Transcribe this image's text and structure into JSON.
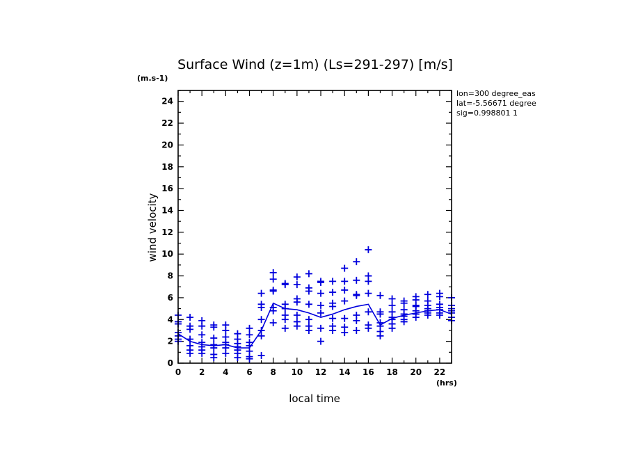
{
  "chart_data": {
    "type": "scatter",
    "title": "Surface Wind (z=1m) (Ls=291-297) [m/s]",
    "xlabel": "local time",
    "ylabel": "wind velocity",
    "x_unit": "(hrs)",
    "y_unit": "(m.s-1)",
    "xlim": [
      0,
      23
    ],
    "ylim": [
      0,
      25
    ],
    "x_ticks": [
      0,
      2,
      4,
      6,
      8,
      10,
      12,
      14,
      16,
      18,
      20,
      22
    ],
    "y_ticks": [
      0,
      2,
      4,
      6,
      8,
      10,
      12,
      14,
      16,
      18,
      20,
      22,
      24
    ],
    "info_lines": [
      "lon=300 degree_eas",
      "lat=-5.56671 degree",
      "sig=0.998801 1"
    ],
    "grid": false,
    "color": "#0000dd",
    "mean_line": {
      "x": [
        0,
        1,
        2,
        3,
        4,
        5,
        6,
        7,
        8,
        9,
        10,
        11,
        12,
        13,
        14,
        15,
        16,
        17,
        18,
        19,
        20,
        21,
        22,
        23
      ],
      "y": [
        2.7,
        2.0,
        1.7,
        1.6,
        1.7,
        1.4,
        1.4,
        3.0,
        5.5,
        5.0,
        4.9,
        4.6,
        4.2,
        4.5,
        4.9,
        5.2,
        5.4,
        3.5,
        4.1,
        4.4,
        4.6,
        4.8,
        4.9,
        4.5
      ]
    },
    "points": {
      "x": [
        0,
        0,
        0,
        0,
        0,
        0,
        0,
        1,
        1,
        1,
        1,
        1,
        1,
        1,
        2,
        2,
        2,
        2,
        2,
        2,
        2,
        3,
        3,
        3,
        3,
        3,
        3,
        3,
        4,
        4,
        4,
        4,
        4,
        4,
        4,
        5,
        5,
        5,
        5,
        5,
        5,
        5,
        6,
        6,
        6,
        6,
        6,
        6,
        6,
        7,
        7,
        7,
        7,
        7,
        7,
        7,
        8,
        8,
        8,
        8,
        8,
        8,
        8,
        9,
        9,
        9,
        9,
        9,
        9,
        9,
        10,
        10,
        10,
        10,
        10,
        10,
        10,
        11,
        11,
        11,
        11,
        11,
        11,
        11,
        12,
        12,
        12,
        12,
        12,
        12,
        12,
        13,
        13,
        13,
        13,
        13,
        13,
        13,
        14,
        14,
        14,
        14,
        14,
        14,
        14,
        15,
        15,
        15,
        15,
        15,
        15,
        15,
        16,
        16,
        16,
        16,
        16,
        16,
        16,
        17,
        17,
        17,
        17,
        17,
        17,
        17,
        18,
        18,
        18,
        18,
        18,
        18,
        18,
        19,
        19,
        19,
        19,
        19,
        19,
        19,
        20,
        20,
        20,
        20,
        20,
        20,
        20,
        21,
        21,
        21,
        21,
        21,
        21,
        21,
        22,
        22,
        22,
        22,
        22,
        22,
        22,
        23,
        23,
        23,
        23,
        23,
        23,
        23
      ],
      "y": [
        4.4,
        3.8,
        3.6,
        2.8,
        2.5,
        2.2,
        2.0,
        4.2,
        3.4,
        3.1,
        2.2,
        1.6,
        1.2,
        0.9,
        3.9,
        3.4,
        2.6,
        1.9,
        1.5,
        1.2,
        0.9,
        3.5,
        3.3,
        2.3,
        1.7,
        1.4,
        0.8,
        0.5,
        3.5,
        3.0,
        2.4,
        1.9,
        1.7,
        1.4,
        0.9,
        2.7,
        2.2,
        1.8,
        1.5,
        1.2,
        0.9,
        0.5,
        3.2,
        2.6,
        1.9,
        1.6,
        1.1,
        0.6,
        0.4,
        6.4,
        5.4,
        5.1,
        4.0,
        3.0,
        2.5,
        0.7,
        8.3,
        7.7,
        6.7,
        6.6,
        5.1,
        4.8,
        3.7,
        7.3,
        7.2,
        5.4,
        5.0,
        4.4,
        4.0,
        3.2,
        7.9,
        7.2,
        5.9,
        5.6,
        4.4,
        3.8,
        3.4,
        8.2,
        6.9,
        6.6,
        5.4,
        4.0,
        3.4,
        3.0,
        7.5,
        7.4,
        6.4,
        5.3,
        4.6,
        3.2,
        2.0,
        7.5,
        6.5,
        5.5,
        5.2,
        4.1,
        3.4,
        3.0,
        8.7,
        7.5,
        6.7,
        5.7,
        4.1,
        3.3,
        2.8,
        9.3,
        7.6,
        6.3,
        6.2,
        4.4,
        3.9,
        3.0,
        10.4,
        8.0,
        7.5,
        6.4,
        4.7,
        3.5,
        3.2,
        6.2,
        4.7,
        4.5,
        3.7,
        3.4,
        2.9,
        2.5,
        5.9,
        5.3,
        4.7,
        4.2,
        4.0,
        3.6,
        3.2,
        5.7,
        5.5,
        4.9,
        4.5,
        4.3,
        4.0,
        3.8,
        6.1,
        5.8,
        5.3,
        5.2,
        4.8,
        4.5,
        4.2,
        6.3,
        5.7,
        5.3,
        5.0,
        4.8,
        4.6,
        4.4,
        6.4,
        6.1,
        5.4,
        5.1,
        4.9,
        4.6,
        4.4,
        6.0,
        5.3,
        5.0,
        4.8,
        4.6,
        4.2,
        3.9
      ]
    }
  }
}
